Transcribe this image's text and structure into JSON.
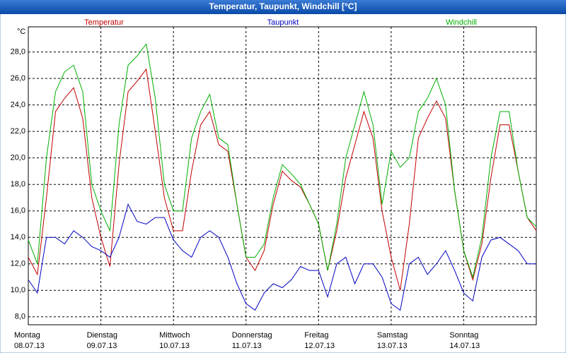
{
  "chart_data": {
    "type": "line",
    "title": "Temperatur, Taupunkt, Windchill [°C]",
    "y_unit_label": "°C",
    "x": [
      0,
      0.125,
      0.25,
      0.375,
      0.5,
      0.625,
      0.75,
      0.875,
      1,
      1.125,
      1.25,
      1.375,
      1.5,
      1.625,
      1.75,
      1.875,
      2,
      2.125,
      2.25,
      2.375,
      2.5,
      2.625,
      2.75,
      2.875,
      3,
      3.125,
      3.25,
      3.375,
      3.5,
      3.625,
      3.75,
      3.875,
      4,
      4.125,
      4.25,
      4.375,
      4.5,
      4.625,
      4.75,
      4.875,
      5,
      5.125,
      5.25,
      5.375,
      5.5,
      5.625,
      5.75,
      5.875,
      6,
      6.125,
      6.25,
      6.375,
      6.5,
      6.625,
      6.75,
      6.875,
      7
    ],
    "series": [
      {
        "name": "Temperatur",
        "color": "#c00000",
        "values": [
          12.5,
          11.2,
          17,
          23.5,
          24.5,
          25.3,
          23,
          17,
          14,
          11.8,
          19.5,
          25,
          25.8,
          26.7,
          22,
          17,
          14.5,
          14.5,
          19,
          22.5,
          23.5,
          21,
          20.5,
          16.5,
          12.5,
          11.5,
          13,
          16.5,
          19,
          18.3,
          17.8,
          16.5,
          15,
          11.5,
          14.5,
          18.5,
          21,
          23.5,
          21.5,
          16,
          12.5,
          10,
          15,
          21.5,
          23,
          24.3,
          23,
          17.5,
          13,
          10.8,
          13.5,
          18.5,
          22.5,
          22.5,
          19,
          15.5,
          14.5
        ]
      },
      {
        "name": "Taupunkt",
        "color": "#0000c0",
        "values": [
          10.8,
          9.8,
          14,
          14,
          13.5,
          14.5,
          14,
          13.3,
          13,
          12.5,
          14,
          16.5,
          15.2,
          15,
          15.5,
          15.5,
          13.8,
          13,
          12.5,
          14,
          14.5,
          14,
          12.5,
          10.5,
          9,
          8.5,
          9.8,
          10.5,
          10.2,
          10.8,
          11.8,
          11.5,
          11.5,
          9.5,
          12,
          12.5,
          10.5,
          12,
          12,
          11,
          9,
          8.5,
          12,
          12.5,
          11.2,
          12,
          13,
          11.5,
          9.8,
          9.2,
          12.5,
          13.8,
          14,
          13.5,
          13,
          12,
          12
        ]
      },
      {
        "name": "Windchill",
        "color": "#00b000",
        "values": [
          13.8,
          12,
          20,
          25,
          26.5,
          27,
          25,
          18,
          16,
          14.5,
          22.5,
          27,
          27.7,
          28.6,
          24.5,
          18,
          16,
          16,
          21.5,
          23.5,
          24.8,
          21.5,
          21,
          16.5,
          12.5,
          12.5,
          13.5,
          17,
          19.5,
          18.8,
          18,
          16.5,
          15,
          11.5,
          15,
          20,
          22.5,
          25,
          22.5,
          16.5,
          20.5,
          19.3,
          20,
          23.5,
          24.5,
          26,
          24,
          17.5,
          13,
          11,
          14,
          20,
          23.5,
          23.5,
          19,
          15.5,
          14.8
        ]
      }
    ],
    "xlim": [
      0,
      7
    ],
    "xticks": [
      {
        "value": 0,
        "label": "Montag"
      },
      {
        "value": 1,
        "label": "Dienstag"
      },
      {
        "value": 2,
        "label": "Mittwoch"
      },
      {
        "value": 3,
        "label": "Donnerstag"
      },
      {
        "value": 4,
        "label": "Freitag"
      },
      {
        "value": 5,
        "label": "Samstag"
      },
      {
        "value": 6,
        "label": "Sonntag"
      }
    ],
    "xtick_dates": [
      "08.07.13",
      "09.07.13",
      "10.07.13",
      "11.07.13",
      "12.07.13",
      "13.07.13",
      "14.07.13"
    ],
    "ylim": [
      7.4,
      29.9
    ],
    "yticks": [
      {
        "value": 8,
        "label": "8,0"
      },
      {
        "value": 10,
        "label": "10,0"
      },
      {
        "value": 12,
        "label": "12,0"
      },
      {
        "value": 14,
        "label": "14,0"
      },
      {
        "value": 16,
        "label": "16,0"
      },
      {
        "value": 18,
        "label": "18,0"
      },
      {
        "value": 20,
        "label": "20,0"
      },
      {
        "value": 22,
        "label": "22,0"
      },
      {
        "value": 24,
        "label": "24,0"
      },
      {
        "value": 26,
        "label": "26,0"
      },
      {
        "value": 28,
        "label": "28,0"
      }
    ],
    "grid": true
  }
}
